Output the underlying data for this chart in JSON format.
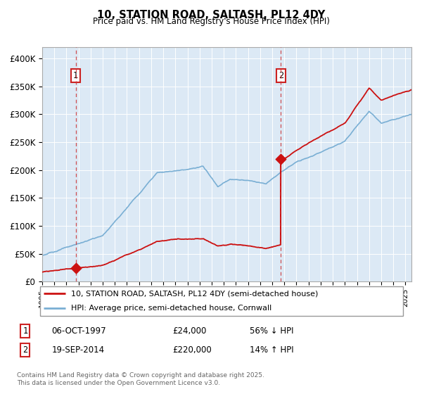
{
  "title": "10, STATION ROAD, SALTASH, PL12 4DY",
  "subtitle": "Price paid vs. HM Land Registry's House Price Index (HPI)",
  "ylim": [
    0,
    420000
  ],
  "yticks": [
    0,
    50000,
    100000,
    150000,
    200000,
    250000,
    300000,
    350000,
    400000
  ],
  "ytick_labels": [
    "£0",
    "£50K",
    "£100K",
    "£150K",
    "£200K",
    "£250K",
    "£300K",
    "£350K",
    "£400K"
  ],
  "hpi_color": "#7aafd4",
  "price_color": "#cc1111",
  "marker_date1": 1997.77,
  "marker_date2": 2014.72,
  "marker_val1": 24000,
  "marker_val2": 220000,
  "label1": "1",
  "label2": "2",
  "legend_line1": "10, STATION ROAD, SALTASH, PL12 4DY (semi-detached house)",
  "legend_line2": "HPI: Average price, semi-detached house, Cornwall",
  "annotation1_date": "06-OCT-1997",
  "annotation1_price": "£24,000",
  "annotation1_hpi": "56% ↓ HPI",
  "annotation2_date": "19-SEP-2014",
  "annotation2_price": "£220,000",
  "annotation2_hpi": "14% ↑ HPI",
  "footer": "Contains HM Land Registry data © Crown copyright and database right 2025.\nThis data is licensed under the Open Government Licence v3.0.",
  "bg_color": "#ffffff",
  "chart_bg_color": "#dce9f5",
  "grid_color": "#ffffff",
  "vline_color": "#cc3333",
  "xlim_start": 1995.0,
  "xlim_end": 2025.5
}
